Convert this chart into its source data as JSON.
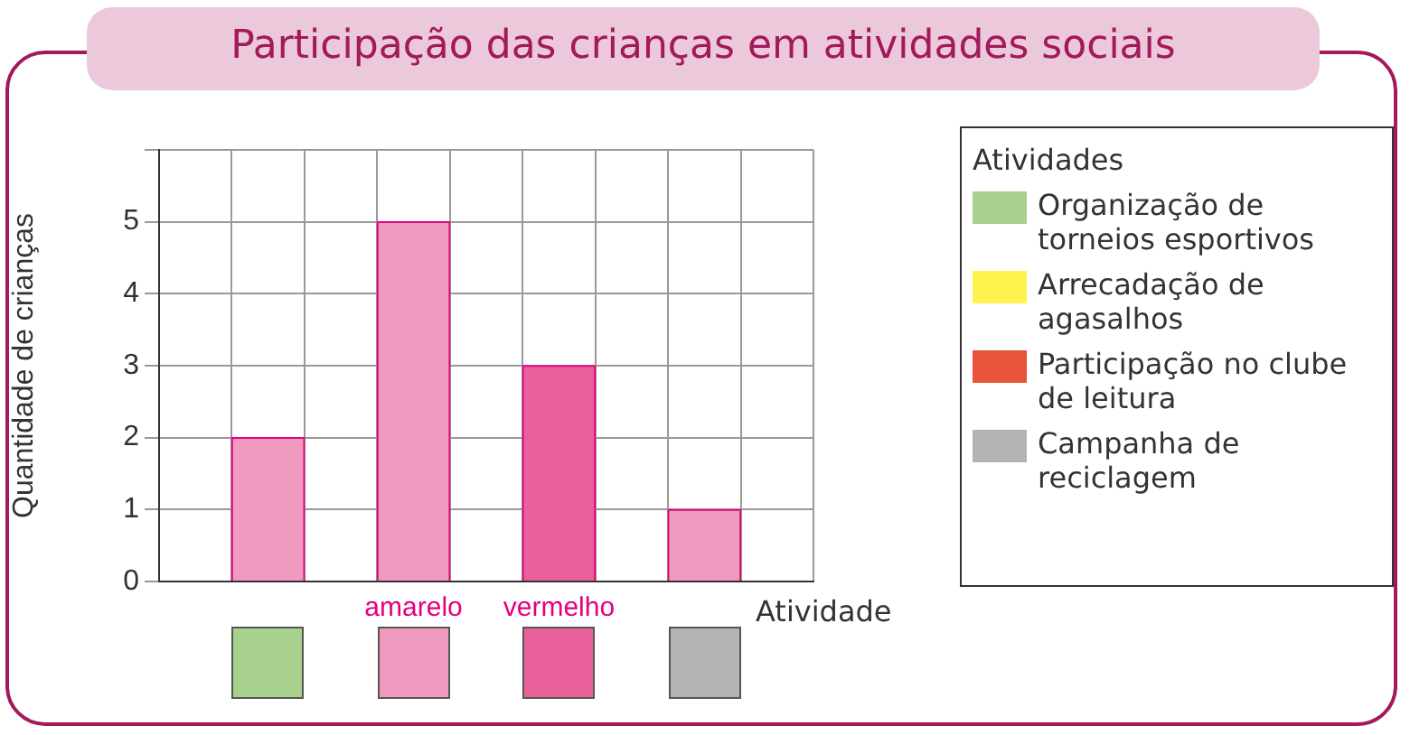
{
  "chart_data": {
    "type": "bar",
    "title": "Participação das crianças em atividades sociais",
    "categories": [
      null,
      null,
      null,
      "amarelo",
      null,
      "vermelho",
      null,
      null,
      null
    ],
    "values": [
      null,
      2,
      null,
      5,
      null,
      3,
      null,
      1,
      null
    ],
    "colors": [
      null,
      "#f19ac0",
      null,
      "#f19ac0",
      null,
      "#e8619b",
      null,
      "#f19ac0",
      null
    ],
    "ylabel": "Quantidade de crianças",
    "xlabel": "Atividade",
    "legend_title": "Atividades",
    "annotations": [
      "Organização de torneios esportivos",
      "Arrecadação de agasalhos",
      "Participação no clube de leitura",
      "Campanha de reciclagem"
    ],
    "ylim": [
      0,
      6
    ],
    "yticks": [
      0,
      1,
      2,
      3,
      4,
      5,
      {
        "value": 6,
        "label": null
      }
    ],
    "grid": true
  }
}
